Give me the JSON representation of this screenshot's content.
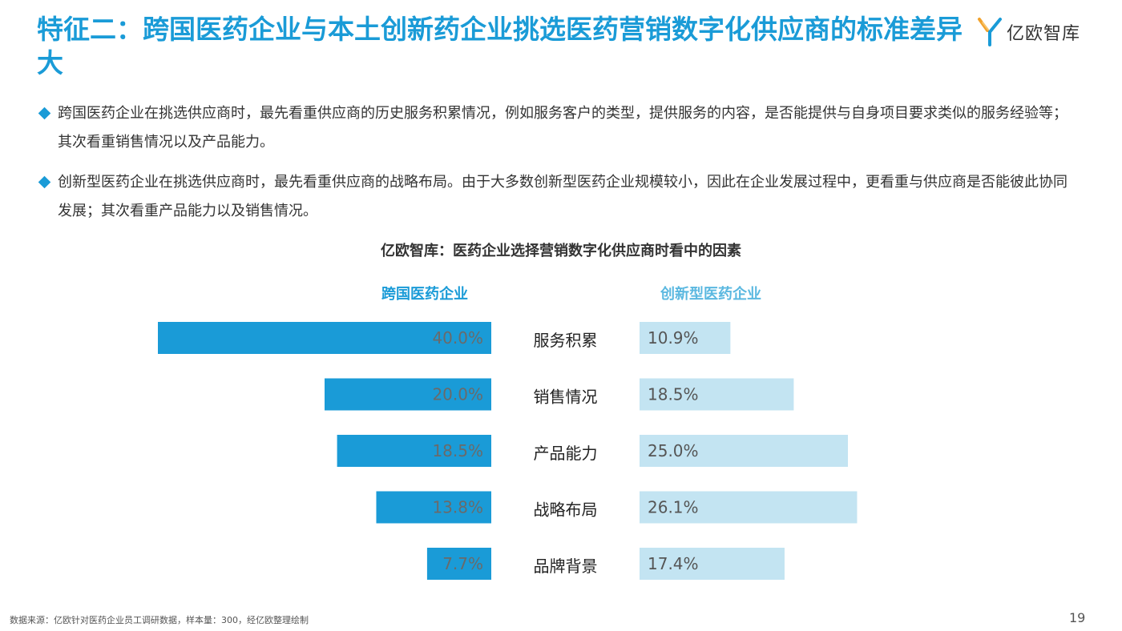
{
  "header": {
    "title": "特征二：跨国医药企业与本土创新药企业挑选医药营销数字化供应商的标准差异大",
    "logo_text": "亿欧智库"
  },
  "bullets": [
    "跨国医药企业在挑选供应商时，最先看重供应商的历史服务积累情况，例如服务客户的类型，提供服务的内容，是否能提供与自身项目要求类似的服务经验等；其次看重销售情况以及产品能力。",
    "创新型医药企业在挑选供应商时，最先看重供应商的战略布局。由于大多数创新型医药企业规模较小，因此在企业发展过程中，更看重与供应商是否能彼此协同发展；其次看重产品能力以及销售情况。"
  ],
  "chart_data": {
    "type": "bar",
    "title": "亿欧智库：医药企业选择营销数字化供应商时看中的因素",
    "categories": [
      "服务积累",
      "销售情况",
      "产品能力",
      "战略布局",
      "品牌背景"
    ],
    "series": [
      {
        "name": "跨国医药企业",
        "values": [
          40.0,
          20.0,
          18.5,
          13.8,
          7.7
        ],
        "labels": [
          "40.0%",
          "20.0%",
          "18.5%",
          "13.8%",
          "7.7%"
        ],
        "color": "#1a9bd7"
      },
      {
        "name": "创新型医药企业",
        "values": [
          10.9,
          18.5,
          25.0,
          26.1,
          17.4
        ],
        "labels": [
          "10.9%",
          "18.5%",
          "25.0%",
          "26.1%",
          "17.4%"
        ],
        "color": "#c3e4f2"
      }
    ],
    "unit": "%"
  },
  "footer": {
    "source": "数据来源：亿欧针对医药企业员工调研数据，样本量：300，经亿欧整理绘制",
    "page": "19"
  }
}
